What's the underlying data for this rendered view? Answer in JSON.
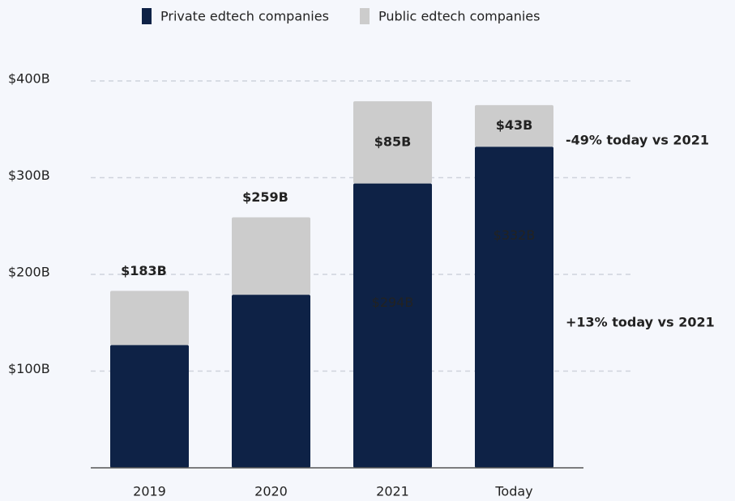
{
  "chart_data": {
    "type": "stacked_bar",
    "categories": [
      "2019",
      "2020",
      "2021",
      "Today"
    ],
    "series": [
      {
        "name": "Private edtech companies",
        "color": "#0e2246",
        "values": [
          127,
          179,
          294,
          332
        ],
        "value_labels": [
          null,
          null,
          "$294B",
          "$332B"
        ]
      },
      {
        "name": "Public edtech companies",
        "color": "#cccccc",
        "values": [
          56,
          80,
          85,
          43
        ],
        "value_labels": [
          null,
          null,
          "$85B",
          "$43B"
        ]
      }
    ],
    "total_labels": [
      "$183B",
      "$259B"
    ],
    "annotations": [
      {
        "text": "-49% today vs 2021",
        "color": "#e8606a"
      },
      {
        "text": "+13% today vs 2021",
        "color": "#4cc97a"
      }
    ],
    "ylim": [
      0,
      400
    ],
    "yticks": [
      {
        "value": 100,
        "label": "$100B"
      },
      {
        "value": 200,
        "label": "$200B"
      },
      {
        "value": 300,
        "label": "$300B"
      },
      {
        "value": 400,
        "label": "$400B"
      }
    ],
    "grid": true,
    "legend": "top"
  }
}
